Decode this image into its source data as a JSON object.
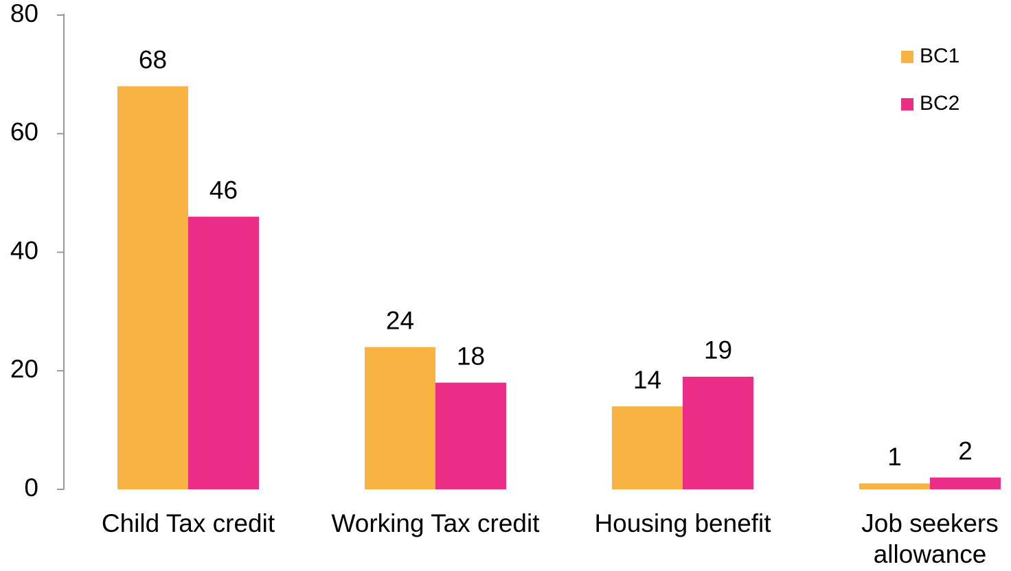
{
  "chart_data": {
    "type": "bar",
    "categories": [
      "Child Tax credit",
      "Working Tax credit",
      "Housing benefit",
      "Job seekers allowance"
    ],
    "series": [
      {
        "name": "BC1",
        "color": "#f9b342",
        "values": [
          68,
          24,
          14,
          1
        ]
      },
      {
        "name": "BC2",
        "color": "#ec2d87",
        "values": [
          46,
          18,
          19,
          2
        ]
      }
    ],
    "ylim": [
      0,
      80
    ],
    "yticks": [
      0,
      20,
      40,
      60,
      80
    ],
    "grid": false,
    "legend": "top-right"
  }
}
